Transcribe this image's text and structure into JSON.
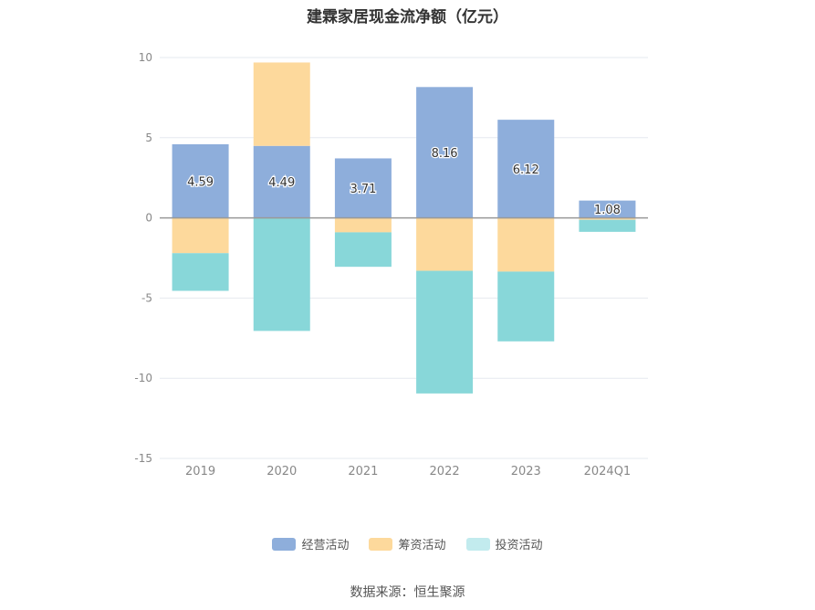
{
  "chart_data": {
    "type": "bar",
    "stacked": true,
    "title": "建霖家居现金流净额（亿元）",
    "categories": [
      "2019",
      "2020",
      "2021",
      "2022",
      "2023",
      "2024Q1"
    ],
    "ylim": [
      -15,
      10
    ],
    "yticks": [
      10,
      5,
      0,
      -5,
      -10,
      -15
    ],
    "grid": true,
    "legend_position": "bottom",
    "series": [
      {
        "name": "经营活动",
        "color": "#8eaedb",
        "values": [
          4.59,
          4.49,
          3.71,
          8.16,
          6.12,
          1.08
        ],
        "labels": [
          "4.59",
          "4.49",
          "3.71",
          "8.16",
          "6.12",
          "1.08"
        ]
      },
      {
        "name": "筹资活动",
        "color": "#fdd99c",
        "values": [
          -2.2,
          5.2,
          -0.9,
          -3.3,
          -3.35,
          -0.12
        ]
      },
      {
        "name": "投资活动",
        "color": "#88d7d9",
        "values": [
          -2.35,
          -7.05,
          -2.15,
          -7.65,
          -4.35,
          -0.75
        ]
      }
    ]
  },
  "legend_colors": [
    "#8eaedb",
    "#fdd99c",
    "#c2ebee"
  ],
  "source": "数据来源：恒生聚源"
}
